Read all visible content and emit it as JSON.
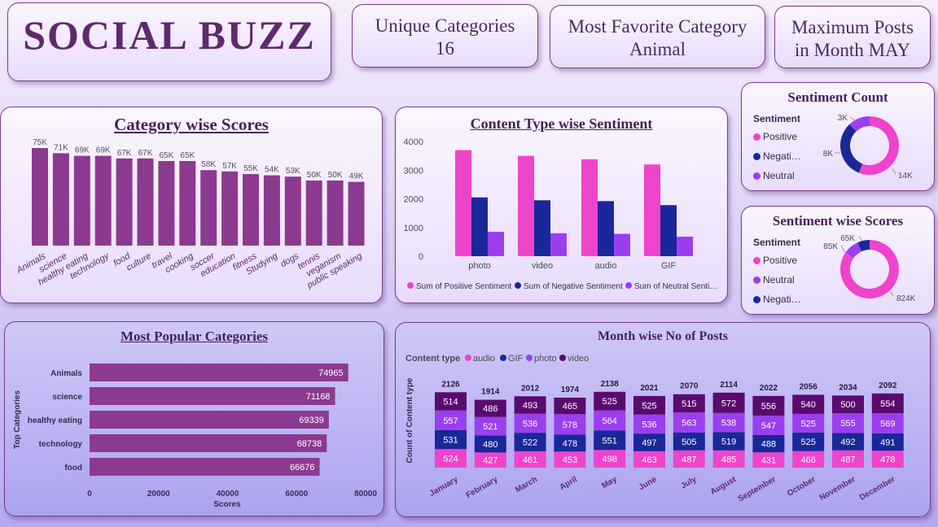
{
  "header": {
    "title": "SOCIAL BUZZ"
  },
  "kpis": [
    {
      "line1": "Unique Categories",
      "line2": "16"
    },
    {
      "line1": "Most Favorite Category",
      "line2": "Animal"
    },
    {
      "line1": "Maximum Posts",
      "line2": "in Month MAY"
    }
  ],
  "colors": {
    "purple_bar": "#8b3a8f",
    "positive": "#ee44cc",
    "negative": "#1a2799",
    "neutral": "#9a3ff0",
    "audio": "#ee44cc",
    "gif": "#1a2799",
    "photo": "#9a3ff0",
    "video": "#5a0a6e"
  },
  "chart_data": [
    {
      "id": "category",
      "type": "bar",
      "title": "Category wise Scores",
      "categories": [
        "Animals",
        "science",
        "healthy eating",
        "technology",
        "food",
        "culture",
        "travel",
        "cooking",
        "soccer",
        "education",
        "fitness",
        "Studying",
        "dogs",
        "tennis",
        "veganism",
        "public speaking"
      ],
      "values": [
        75,
        71,
        69,
        69,
        67,
        67,
        65,
        65,
        58,
        57,
        55,
        54,
        53,
        50,
        50,
        49
      ],
      "data_labels": [
        "75K",
        "71K",
        "69K",
        "69K",
        "67K",
        "67K",
        "65K",
        "65K",
        "58K",
        "57K",
        "55K",
        "54K",
        "53K",
        "50K",
        "50K",
        "49K"
      ]
    },
    {
      "id": "content",
      "type": "bar",
      "title": "Content Type wise Sentiment",
      "categories": [
        "photo",
        "video",
        "audio",
        "GIF"
      ],
      "yticks": [
        "0",
        "1000",
        "2000",
        "3000",
        "4000"
      ],
      "ylim": [
        0,
        4000
      ],
      "series": [
        {
          "name": "Sum of Positive Sentiment",
          "values": [
            3700,
            3500,
            3380,
            3200
          ]
        },
        {
          "name": "Sum of Negative Sentiment",
          "values": [
            2050,
            1950,
            1920,
            1780
          ]
        },
        {
          "name": "Sum of Neutral Senti…",
          "values": [
            850,
            800,
            780,
            680
          ]
        }
      ]
    },
    {
      "id": "sentcount",
      "type": "pie",
      "title": "Sentiment Count",
      "legend_title": "Sentiment",
      "labels": [
        "Positive",
        "Negati…",
        "Neutral"
      ],
      "values": [
        14,
        8,
        3
      ],
      "data_labels": [
        "14K",
        "8K",
        "3K"
      ]
    },
    {
      "id": "sentscores",
      "type": "pie",
      "title": "Sentiment wise Scores",
      "legend_title": "Sentiment",
      "labels": [
        "Positive",
        "Neutral",
        "Negati…"
      ],
      "values": [
        824,
        85,
        65
      ],
      "data_labels": [
        "824K",
        "85K",
        "65K"
      ]
    },
    {
      "id": "popular",
      "type": "bar",
      "title": "Most Popular Categories",
      "ylabel": "Top Categories",
      "xlabel": "Scores",
      "categories": [
        "Animals",
        "science",
        "healthy eating",
        "technology",
        "food"
      ],
      "values": [
        74965,
        71168,
        69339,
        68738,
        66676
      ],
      "xticks": [
        "0",
        "20000",
        "40000",
        "60000",
        "80000"
      ],
      "xlim": [
        0,
        80000
      ]
    },
    {
      "id": "monthly",
      "type": "bar",
      "title": "Month wise No of Posts",
      "legend_title": "Content type",
      "ylabel": "Count of Content type",
      "categories": [
        "January",
        "February",
        "March",
        "April",
        "May",
        "June",
        "July",
        "August",
        "September",
        "October",
        "November",
        "December"
      ],
      "totals": [
        2126,
        1914,
        2012,
        1974,
        2138,
        2021,
        2070,
        2114,
        2022,
        2056,
        2034,
        2092
      ],
      "series": [
        {
          "name": "audio",
          "values": [
            524,
            427,
            461,
            453,
            498,
            463,
            487,
            485,
            431,
            466,
            487,
            478
          ]
        },
        {
          "name": "GIF",
          "values": [
            531,
            480,
            522,
            478,
            551,
            497,
            505,
            519,
            488,
            525,
            492,
            491
          ]
        },
        {
          "name": "photo",
          "values": [
            557,
            521,
            536,
            578,
            564,
            536,
            563,
            538,
            547,
            525,
            555,
            569
          ]
        },
        {
          "name": "video",
          "values": [
            514,
            486,
            493,
            465,
            525,
            525,
            515,
            572,
            556,
            540,
            500,
            554
          ]
        }
      ]
    }
  ]
}
